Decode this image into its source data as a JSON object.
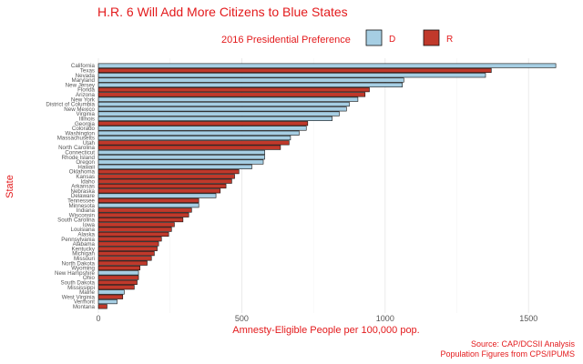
{
  "chart_data": {
    "type": "bar",
    "orientation": "horizontal",
    "title": "H.R. 6 Will Add More Citizens to Blue States",
    "xlabel": "Amnesty-Eligible People per 100,000 pop.",
    "ylabel": "State",
    "xlim": [
      0,
      1620
    ],
    "xticks": [
      0,
      500,
      1000,
      1500
    ],
    "grid": true,
    "legend": {
      "title": "2016 Presidential Preference",
      "position": "top",
      "entries": [
        {
          "key": "D",
          "label": "D",
          "color": "#a6cee3"
        },
        {
          "key": "R",
          "label": "R",
          "color": "#c0392b"
        }
      ]
    },
    "caption": [
      "Source: CAP/DCSII Analysis",
      "Population Figures from CPS/IPUMS"
    ],
    "bars": [
      {
        "state": "California",
        "party": "D",
        "value": 1595
      },
      {
        "state": "Texas",
        "party": "R",
        "value": 1370
      },
      {
        "state": "Nevada",
        "party": "D",
        "value": 1350
      },
      {
        "state": "Maryland",
        "party": "D",
        "value": 1065
      },
      {
        "state": "New Jersey",
        "party": "D",
        "value": 1060
      },
      {
        "state": "Florida",
        "party": "R",
        "value": 945
      },
      {
        "state": "Arizona",
        "party": "R",
        "value": 930
      },
      {
        "state": "New York",
        "party": "D",
        "value": 905
      },
      {
        "state": "District of Columbia",
        "party": "D",
        "value": 875
      },
      {
        "state": "New Mexico",
        "party": "D",
        "value": 865
      },
      {
        "state": "Virginia",
        "party": "D",
        "value": 840
      },
      {
        "state": "Illinois",
        "party": "D",
        "value": 815
      },
      {
        "state": "Georgia",
        "party": "R",
        "value": 730
      },
      {
        "state": "Colorado",
        "party": "D",
        "value": 725
      },
      {
        "state": "Washington",
        "party": "D",
        "value": 700
      },
      {
        "state": "Massachusetts",
        "party": "D",
        "value": 670
      },
      {
        "state": "Utah",
        "party": "R",
        "value": 665
      },
      {
        "state": "North Carolina",
        "party": "R",
        "value": 635
      },
      {
        "state": "Connecticut",
        "party": "D",
        "value": 580
      },
      {
        "state": "Rhode Island",
        "party": "D",
        "value": 580
      },
      {
        "state": "Oregon",
        "party": "D",
        "value": 575
      },
      {
        "state": "Hawaii",
        "party": "D",
        "value": 535
      },
      {
        "state": "Oklahoma",
        "party": "R",
        "value": 490
      },
      {
        "state": "Kansas",
        "party": "R",
        "value": 475
      },
      {
        "state": "Idaho",
        "party": "R",
        "value": 465
      },
      {
        "state": "Arkansas",
        "party": "R",
        "value": 445
      },
      {
        "state": "Nebraska",
        "party": "R",
        "value": 425
      },
      {
        "state": "Delaware",
        "party": "D",
        "value": 410
      },
      {
        "state": "Tennessee",
        "party": "R",
        "value": 350
      },
      {
        "state": "Minnesota",
        "party": "D",
        "value": 350
      },
      {
        "state": "Indiana",
        "party": "R",
        "value": 325
      },
      {
        "state": "Wisconsin",
        "party": "R",
        "value": 315
      },
      {
        "state": "South Carolina",
        "party": "R",
        "value": 295
      },
      {
        "state": "Iowa",
        "party": "R",
        "value": 265
      },
      {
        "state": "Louisiana",
        "party": "R",
        "value": 255
      },
      {
        "state": "Alaska",
        "party": "R",
        "value": 245
      },
      {
        "state": "Pennsylvania",
        "party": "R",
        "value": 220
      },
      {
        "state": "Alabama",
        "party": "R",
        "value": 210
      },
      {
        "state": "Kentucky",
        "party": "R",
        "value": 205
      },
      {
        "state": "Michigan",
        "party": "R",
        "value": 195
      },
      {
        "state": "Missouri",
        "party": "R",
        "value": 185
      },
      {
        "state": "North Dakota",
        "party": "R",
        "value": 170
      },
      {
        "state": "Wyoming",
        "party": "R",
        "value": 145
      },
      {
        "state": "New Hampshire",
        "party": "D",
        "value": 140
      },
      {
        "state": "Ohio",
        "party": "R",
        "value": 140
      },
      {
        "state": "South Dakota",
        "party": "R",
        "value": 135
      },
      {
        "state": "Mississippi",
        "party": "R",
        "value": 125
      },
      {
        "state": "Maine",
        "party": "D",
        "value": 90
      },
      {
        "state": "West Virginia",
        "party": "R",
        "value": 85
      },
      {
        "state": "Vermont",
        "party": "D",
        "value": 65
      },
      {
        "state": "Montana",
        "party": "R",
        "value": 30
      }
    ]
  }
}
